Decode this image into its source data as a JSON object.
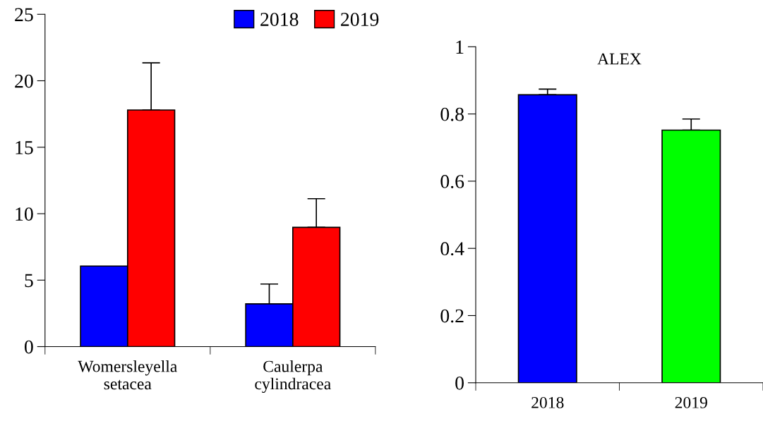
{
  "chart_data": [
    {
      "type": "bar",
      "categories": [
        "Womersleyella\nsetacea",
        "Caulerpa\ncylindracea"
      ],
      "series": [
        {
          "name": "2018",
          "color": "#0000ff",
          "values": [
            6.06,
            3.22
          ],
          "errors": [
            null,
            [
              3.22,
              4.71
            ]
          ]
        },
        {
          "name": "2019",
          "color": "#ff0000",
          "values": [
            17.8,
            8.97
          ],
          "errors": [
            [
              17.8,
              21.35
            ],
            [
              8.97,
              11.13
            ]
          ]
        }
      ],
      "ylim": [
        0,
        25
      ],
      "yticks": [
        0,
        5,
        10,
        15,
        20,
        25
      ],
      "grid": false,
      "legend": "top right"
    },
    {
      "type": "bar",
      "title": "ALEX",
      "categories": [
        "2018",
        "2019"
      ],
      "series": [
        {
          "colors": [
            "#0000ff",
            "#00ff00"
          ],
          "values": [
            0.857,
            0.752
          ],
          "errors": [
            [
              0.857,
              0.874
            ],
            [
              0.752,
              0.785
            ]
          ]
        }
      ],
      "ylim": [
        0,
        1
      ],
      "yticks": [
        0,
        {
          "value": 0.2,
          "label": "0.2"
        },
        {
          "value": 0.4,
          "label": "0.4"
        },
        {
          "value": 0.6,
          "label": "0.6"
        },
        {
          "value": 0.8,
          "label": "0.8"
        },
        1
      ],
      "grid": false,
      "legend": false
    }
  ]
}
